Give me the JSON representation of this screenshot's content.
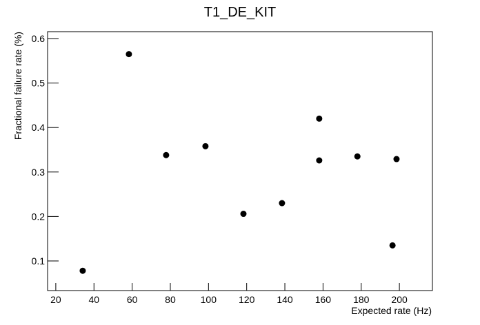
{
  "chart_data": {
    "type": "scatter",
    "title": "T1_DE_KIT",
    "x_label": "Expected rate (Hz)",
    "y_label": "Fractional failure rate (%)",
    "x": [
      34.1,
      58.3,
      77.8,
      98.4,
      118.3,
      138.5,
      158,
      158,
      178,
      196.4,
      198.5
    ],
    "values": [
      0.078,
      0.565,
      0.338,
      0.358,
      0.206,
      0.23,
      0.42,
      0.326,
      0.335,
      0.135,
      0.329
    ],
    "color": "#000000",
    "xlim": [
      15.7,
      217.3
    ],
    "xticks": [
      20,
      40,
      60,
      80,
      100,
      120,
      140,
      160,
      180,
      200
    ],
    "ylim": [
      0.0334,
      0.6155
    ],
    "yticks": [
      0.1,
      0.2,
      0.3,
      0.4,
      0.5,
      0.6
    ]
  }
}
